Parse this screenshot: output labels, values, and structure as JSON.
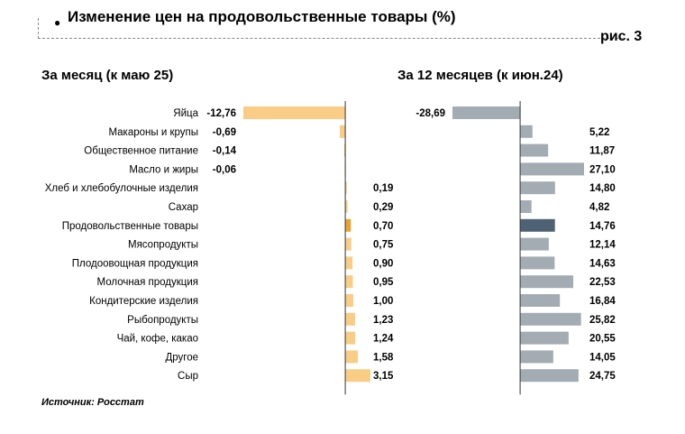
{
  "header": {
    "title": "Изменение цен на продовольственные товары (%)",
    "figure_label": "рис. 3",
    "left_subtitle": "За месяц (к маю 25)",
    "right_subtitle": "За 12 месяцев (к июн.24)",
    "source": "Источник: Росстат"
  },
  "colors": {
    "month_bar": "#f9cd86",
    "month_highlight": "#e8a52c",
    "year_bar": "#a3abb3",
    "year_highlight": "#4f6275"
  },
  "chart_data": {
    "type": "bar",
    "orientation": "horizontal",
    "title": "Изменение цен на продовольственные товары (%)",
    "categories": [
      "Яйца",
      "Макароны и крупы",
      "Общественное питание",
      "Масло и жиры",
      "Хлеб и хлебобулочные изделия",
      "Сахар",
      "Продовольственные товары",
      "Мясопродукты",
      "Плодоовощная продукция",
      "Молочная продукция",
      "Кондитерские изделия",
      "Рыбопродукты",
      "Чай, кофе, какао",
      "Другое",
      "Сыр"
    ],
    "highlight_category": "Продовольственные товары",
    "series": [
      {
        "name": "За месяц (к маю 25)",
        "values": [
          -12.76,
          -0.69,
          -0.14,
          -0.06,
          0.19,
          0.29,
          0.7,
          0.75,
          0.9,
          0.95,
          1.0,
          1.23,
          1.24,
          1.58,
          3.15
        ],
        "labels": [
          "-12,76",
          "-0,69",
          "-0,14",
          "-0,06",
          "0,19",
          "0,29",
          "0,70",
          "0,75",
          "0,90",
          "0,95",
          "1,00",
          "1,23",
          "1,24",
          "1,58",
          "3,15"
        ],
        "xlim": [
          -12.76,
          3.15
        ]
      },
      {
        "name": "За 12 месяцев (к июн.24)",
        "values": [
          -28.69,
          5.22,
          11.87,
          27.1,
          14.8,
          4.82,
          14.76,
          12.14,
          14.63,
          22.53,
          16.84,
          25.82,
          20.55,
          14.05,
          24.75
        ],
        "labels": [
          "-28,69",
          "5,22",
          "11,87",
          "27,10",
          "14,80",
          "4,82",
          "14,76",
          "12,14",
          "14,63",
          "22,53",
          "16,84",
          "25,82",
          "20,55",
          "14,05",
          "24,75"
        ],
        "xlim": [
          -28.69,
          27.1
        ]
      }
    ],
    "xlabel": "",
    "ylabel": "",
    "grid": false,
    "legend": "none"
  }
}
